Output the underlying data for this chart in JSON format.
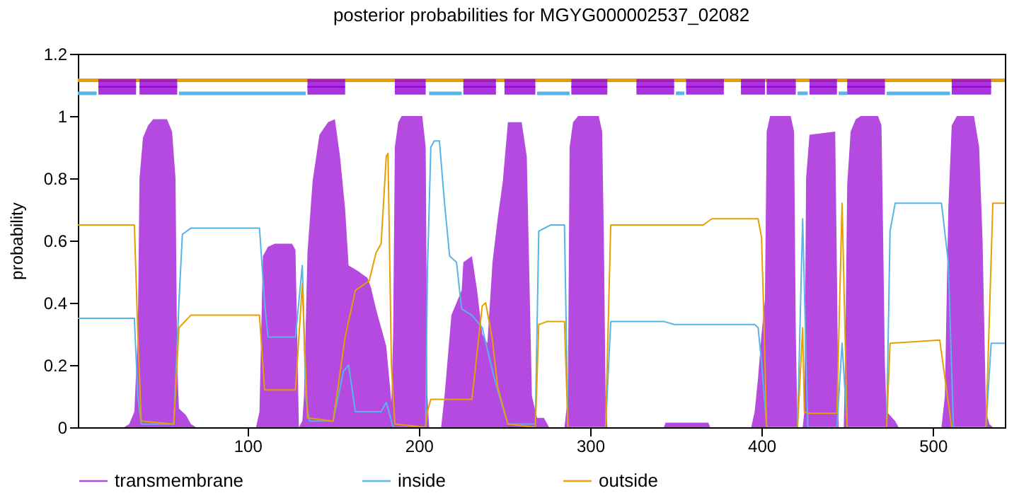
{
  "chart_data": {
    "type": "line",
    "title": "posterior probabilities for MGYG000002537_02082",
    "ylabel": "probability",
    "xlim": [
      1,
      542
    ],
    "xticks": [
      100,
      200,
      300,
      400,
      500
    ],
    "ylim": [
      0,
      1.2
    ],
    "yticks": [
      0,
      0.2,
      0.4,
      0.6,
      0.8,
      1,
      1.2
    ],
    "grid": false,
    "legend": "bottom",
    "series": [
      {
        "name": "transmembrane",
        "type": "area",
        "color": "#b040dd",
        "x": [
          1,
          28,
          31,
          34,
          36,
          37,
          39,
          42,
          45,
          53,
          56,
          58,
          59,
          60,
          64,
          67,
          70,
          105,
          107,
          108,
          109,
          112,
          116,
          126,
          128,
          129,
          130,
          132,
          133,
          135,
          138,
          142,
          147,
          151,
          154,
          157,
          159,
          162,
          165,
          170,
          172,
          175,
          178,
          181,
          184,
          185,
          186,
          188,
          190,
          202,
          204,
          205,
          206,
          213,
          215,
          219,
          225,
          226,
          231,
          234,
          237,
          240,
          243,
          246,
          249,
          252,
          260,
          263,
          266,
          269,
          273,
          276,
          285,
          287,
          288,
          290,
          293,
          305,
          307,
          308,
          309,
          310,
          343,
          344,
          369,
          370,
          394,
          396,
          398,
          400,
          402,
          403,
          405,
          417,
          419,
          420,
          421,
          424,
          425,
          426,
          428,
          443,
          444,
          445,
          448,
          449,
          450,
          452,
          455,
          458,
          468,
          470,
          471,
          472,
          473,
          478,
          480,
          505,
          507,
          509,
          511,
          514,
          524,
          527,
          529,
          531,
          533,
          535,
          542
        ],
        "values": [
          0,
          0,
          0.01,
          0.05,
          0.3,
          0.8,
          0.93,
          0.97,
          0.99,
          0.99,
          0.95,
          0.8,
          0.2,
          0.06,
          0.04,
          0.01,
          0,
          0,
          0.05,
          0.3,
          0.55,
          0.58,
          0.59,
          0.59,
          0.57,
          0.3,
          0,
          0.02,
          0.1,
          0.56,
          0.79,
          0.94,
          0.98,
          0.99,
          0.87,
          0.7,
          0.52,
          0.51,
          0.5,
          0.48,
          0.45,
          0.38,
          0.32,
          0.26,
          0.08,
          0.3,
          0.9,
          0.98,
          1,
          1,
          0.9,
          0.1,
          0,
          0,
          0.1,
          0.36,
          0.44,
          0.53,
          0.55,
          0.44,
          0.3,
          0.27,
          0.53,
          0.67,
          0.79,
          0.98,
          0.98,
          0.87,
          0.1,
          0.03,
          0.03,
          0,
          0,
          0.1,
          0.9,
          0.98,
          1,
          1,
          0.95,
          0.6,
          0.1,
          0,
          0,
          0.015,
          0.015,
          0,
          0,
          0.05,
          0.16,
          0.3,
          0.41,
          0.95,
          1,
          1,
          0.95,
          0.3,
          0,
          0,
          0.05,
          0.8,
          0.94,
          0.95,
          0.5,
          0,
          0,
          0.3,
          0.78,
          0.95,
          0.99,
          1,
          1,
          0.97,
          0.6,
          0.2,
          0.05,
          0.02,
          0,
          0,
          0.1,
          0.7,
          0.97,
          1,
          1,
          0.9,
          0.6,
          0.05,
          0.01,
          0,
          0
        ]
      },
      {
        "name": "inside",
        "type": "line",
        "color": "#56b4e9",
        "x": [
          1,
          34,
          36,
          38,
          57,
          60,
          62,
          67,
          107,
          110,
          112,
          128,
          132,
          134,
          136,
          150,
          153,
          156,
          159,
          163,
          178,
          181,
          185,
          204,
          205,
          207,
          209,
          212,
          215,
          218,
          222,
          225,
          231,
          237,
          243,
          247,
          252,
          268,
          270,
          277,
          285,
          287,
          309,
          312,
          343,
          349,
          396,
          398,
          400,
          403,
          421,
          424,
          427,
          444,
          447,
          450,
          473,
          475,
          478,
          505,
          509,
          512,
          531,
          534,
          542
        ],
        "values": [
          0.35,
          0.35,
          0.1,
          0.01,
          0.01,
          0.4,
          0.62,
          0.64,
          0.64,
          0.4,
          0.29,
          0.29,
          0.52,
          0.1,
          0.02,
          0.02,
          0.1,
          0.18,
          0.2,
          0.05,
          0.05,
          0.08,
          0,
          0,
          0.5,
          0.9,
          0.92,
          0.92,
          0.72,
          0.55,
          0.53,
          0.38,
          0.36,
          0.32,
          0.18,
          0.1,
          0.01,
          0.01,
          0.63,
          0.65,
          0.65,
          0,
          0,
          0.34,
          0.34,
          0.33,
          0.33,
          0.32,
          0.21,
          0,
          0,
          0.67,
          0,
          0,
          0.27,
          0,
          0,
          0.63,
          0.72,
          0.72,
          0.53,
          0,
          0,
          0.27,
          0.27
        ]
      },
      {
        "name": "outside",
        "type": "line",
        "color": "#e69f00",
        "x": [
          1,
          34,
          36,
          38,
          57,
          60,
          67,
          107,
          110,
          128,
          132,
          135,
          150,
          157,
          163,
          171,
          175,
          178,
          181,
          182,
          184,
          186,
          204,
          205,
          207,
          231,
          237,
          239,
          243,
          246,
          252,
          268,
          270,
          275,
          285,
          287,
          309,
          312,
          366,
          371,
          398,
          400,
          401,
          403,
          421,
          424,
          425,
          427,
          444,
          447,
          450,
          473,
          475,
          504,
          511,
          531,
          535,
          542
        ],
        "values": [
          0.65,
          0.65,
          0.3,
          0.02,
          0.01,
          0.32,
          0.36,
          0.36,
          0.12,
          0.12,
          0.46,
          0.03,
          0.02,
          0.29,
          0.44,
          0.47,
          0.56,
          0.59,
          0.87,
          0.88,
          0.2,
          0.01,
          0,
          0.05,
          0.09,
          0.09,
          0.39,
          0.4,
          0.28,
          0.13,
          0.01,
          0,
          0.33,
          0.34,
          0.34,
          0,
          0,
          0.65,
          0.65,
          0.67,
          0.67,
          0.61,
          0.42,
          0,
          0,
          0.32,
          0.05,
          0.045,
          0.045,
          0.72,
          0,
          0,
          0.27,
          0.28,
          0,
          0,
          0.72,
          0.72
        ]
      },
      {
        "type": "line",
        "color": "#e69f00",
        "x": [
          1,
          542
        ],
        "values": [
          1.115,
          1.115
        ]
      },
      {
        "type": "line",
        "color": "#56b4e9",
        "x": [
          1,
          12,
          12.5,
          60,
          134,
          134.5,
          206,
          225,
          225.5,
          269,
          288,
          288.5,
          350,
          355,
          355.5,
          421,
          427,
          427.5,
          445,
          450,
          450.5,
          473,
          510
        ],
        "values": [
          1.073,
          1.073,
          null,
          1.073,
          1.073,
          null,
          1.073,
          1.073,
          null,
          1.073,
          1.073,
          null,
          1.073,
          1.073,
          null,
          1.073,
          1.073,
          null,
          1.073,
          1.073,
          null,
          1.073,
          1.073
        ]
      },
      {
        "type": "line",
        "color": "#9400d3",
        "x": [
          13,
          35,
          36,
          37,
          59,
          60,
          135,
          157,
          158,
          186,
          204,
          205,
          226,
          245,
          246,
          250,
          268,
          269,
          289,
          310,
          311,
          327,
          349,
          350,
          356,
          378,
          379,
          388,
          402,
          402.5,
          403,
          420,
          421,
          428,
          444,
          445,
          450,
          472,
          473,
          511,
          534
        ],
        "values": [
          1.094,
          1.094,
          null,
          1.094,
          1.094,
          null,
          1.094,
          1.094,
          null,
          1.094,
          1.094,
          null,
          1.094,
          1.094,
          null,
          1.094,
          1.094,
          null,
          1.094,
          1.094,
          null,
          1.094,
          1.094,
          null,
          1.094,
          1.094,
          null,
          1.094,
          1.094,
          null,
          1.094,
          1.094,
          null,
          1.094,
          1.094,
          null,
          1.094,
          1.094,
          null,
          1.094,
          1.094
        ],
        "lower": [
          1.069,
          1.069,
          null,
          1.069,
          1.069,
          null,
          1.069,
          1.069,
          null,
          1.069,
          1.069,
          null,
          1.069,
          1.069,
          null,
          1.069,
          1.069,
          null,
          1.069,
          1.069,
          null,
          1.069,
          1.069,
          null,
          1.069,
          1.069,
          null,
          1.069,
          1.069,
          null,
          1.069,
          1.069,
          null,
          1.069,
          1.069,
          null,
          1.069,
          1.069,
          null,
          1.069,
          1.069
        ],
        "upper": [
          1.119,
          1.119,
          null,
          1.119,
          1.119,
          null,
          1.119,
          1.119,
          null,
          1.119,
          1.119,
          null,
          1.119,
          1.119,
          null,
          1.119,
          1.119,
          null,
          1.119,
          1.119,
          null,
          1.119,
          1.119,
          null,
          1.119,
          1.119,
          null,
          1.119,
          1.119,
          null,
          1.119,
          1.119,
          null,
          1.119,
          1.119,
          null,
          1.119,
          1.119,
          null,
          1.119,
          1.119
        ]
      }
    ]
  }
}
